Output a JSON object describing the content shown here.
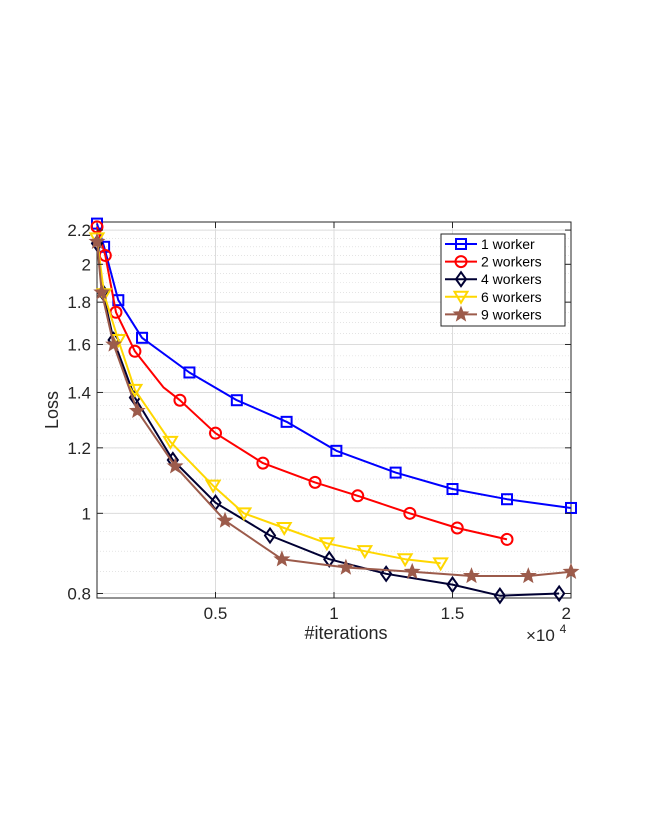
{
  "chart_data": {
    "type": "line",
    "title": "",
    "xlabel": "#iterations",
    "ylabel": "Loss",
    "x_multiplier_label": "×10",
    "x_multiplier_exp": "4",
    "x_scale_factor": 10000,
    "xlim": [
      0,
      20000
    ],
    "ylim": [
      0.79,
      2.25
    ],
    "yscale": "log",
    "grid": true,
    "minor_grid": true,
    "legend_position": "top-right",
    "x_ticks": [
      5000,
      10000,
      15000,
      20000
    ],
    "x_tick_labels": [
      "0.5",
      "1",
      "1.5",
      "2"
    ],
    "y_ticks": [
      0.8,
      1,
      1.2,
      1.4,
      1.6,
      1.8,
      2,
      2.2
    ],
    "y_tick_labels": [
      "0.8",
      "1",
      "1.2",
      "1.4",
      "1.6",
      "1.8",
      "2",
      "2.2"
    ],
    "series": [
      {
        "name": "1 worker",
        "color": "#0000ff",
        "marker": "square",
        "x": [
          0,
          300,
          900,
          1900,
          3900,
          5900,
          8000,
          10100,
          12600,
          15000,
          17300,
          20000
        ],
        "y": [
          2.24,
          2.1,
          1.81,
          1.63,
          1.48,
          1.37,
          1.29,
          1.19,
          1.12,
          1.07,
          1.04,
          1.015
        ],
        "markers_x": [
          0,
          300,
          900,
          1900,
          3900,
          5900,
          8000,
          10100,
          12600,
          15000,
          17300,
          20000
        ]
      },
      {
        "name": "2 workers",
        "color": "#ff0000",
        "marker": "circle",
        "x": [
          0,
          350,
          800,
          1600,
          2800,
          3500,
          5000,
          7000,
          9200,
          11000,
          13200,
          15200,
          17300
        ],
        "y": [
          2.22,
          2.05,
          1.75,
          1.57,
          1.42,
          1.37,
          1.25,
          1.15,
          1.09,
          1.05,
          1.0,
          0.96,
          0.93
        ],
        "markers_x": [
          0,
          350,
          800,
          1600,
          3500,
          5000,
          7000,
          9200,
          11000,
          13200,
          15200,
          17300
        ]
      },
      {
        "name": "4 workers",
        "color": "#000033",
        "marker": "diamond",
        "x": [
          0,
          250,
          700,
          1600,
          3200,
          5000,
          7300,
          9800,
          12200,
          15000,
          17000,
          19500
        ],
        "y": [
          2.12,
          1.85,
          1.62,
          1.38,
          1.16,
          1.03,
          0.94,
          0.88,
          0.845,
          0.82,
          0.795,
          0.8
        ],
        "markers_x": [
          0,
          250,
          700,
          1600,
          3200,
          5000,
          7300,
          9800,
          12200,
          15000,
          17000,
          19500
        ]
      },
      {
        "name": "6 workers",
        "color": "#ffd700",
        "marker": "triangle-down",
        "x": [
          0,
          300,
          900,
          1600,
          3100,
          4900,
          6200,
          7900,
          9700,
          11300,
          13000,
          14500
        ],
        "y": [
          2.15,
          1.84,
          1.62,
          1.41,
          1.22,
          1.08,
          1.0,
          0.96,
          0.92,
          0.9,
          0.88,
          0.87
        ],
        "markers_x": [
          0,
          300,
          900,
          1600,
          3100,
          4900,
          6200,
          7900,
          9700,
          11300,
          13000,
          14500
        ]
      },
      {
        "name": "9 workers",
        "color": "#9c5b4b",
        "marker": "star",
        "x": [
          0,
          200,
          700,
          1700,
          3300,
          5400,
          7800,
          10500,
          13300,
          15800,
          18200,
          20000
        ],
        "y": [
          2.13,
          1.85,
          1.6,
          1.33,
          1.14,
          0.98,
          0.88,
          0.86,
          0.85,
          0.84,
          0.84,
          0.85
        ],
        "markers_x": [
          0,
          200,
          700,
          1700,
          3300,
          5400,
          7800,
          10500,
          13300,
          15800,
          18200,
          20000
        ]
      }
    ]
  }
}
